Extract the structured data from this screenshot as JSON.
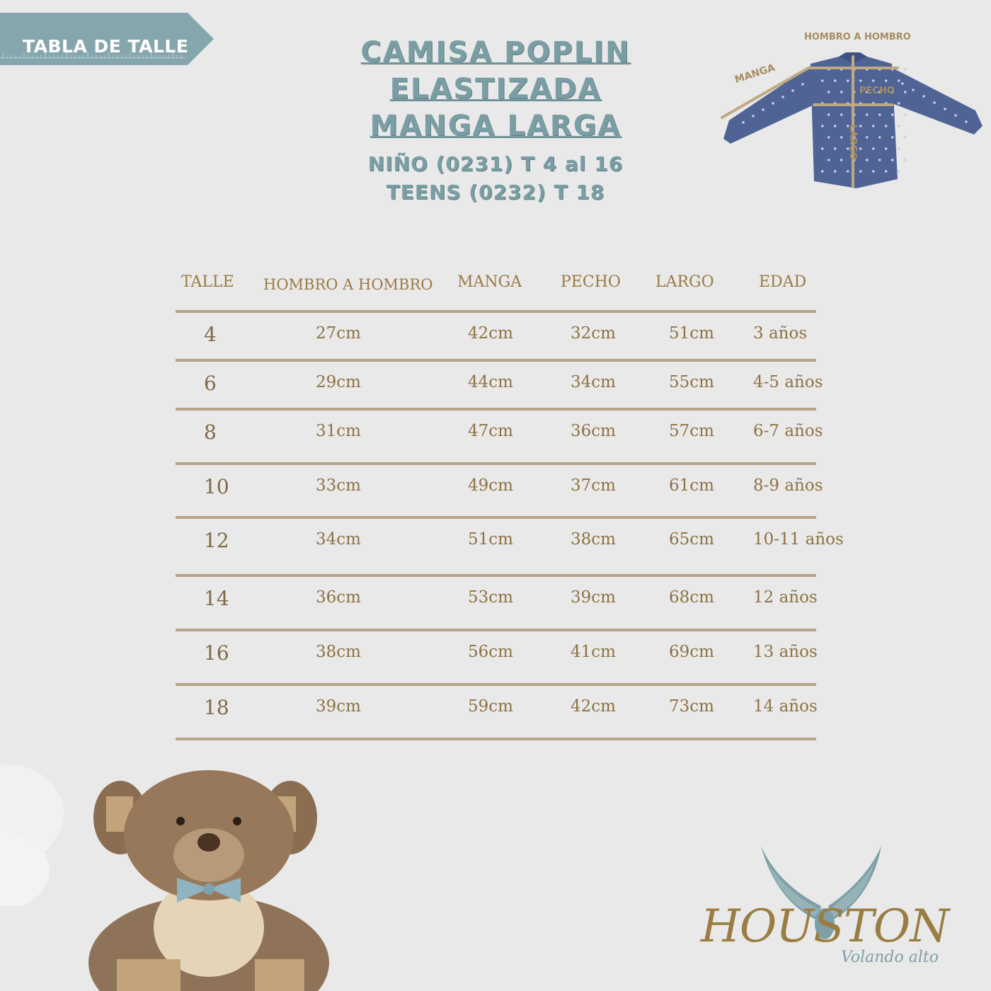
{
  "tag": {
    "label": "TABLA DE TALLE",
    "color": "#86a6ad"
  },
  "title": {
    "lines": [
      "CAMISA POPLIN",
      "ELASTIZADA",
      "MANGA LARGA"
    ],
    "sub_lines": [
      "NIÑO (0231) T 4 al 16",
      "TEENS (0232) T 18"
    ]
  },
  "diagram": {
    "hombro": "HOMBRO A HOMBRO",
    "manga": "MANGA",
    "pecho": "PECHO",
    "largo": "LARGO",
    "shirt_color": "#4f6495"
  },
  "table": {
    "headers": {
      "talle": "TALLE",
      "hombro": "HOMBRO A HOMBRO",
      "manga": "MANGA",
      "pecho": "PECHO",
      "largo": "LARGO",
      "edad": "EDAD"
    },
    "rows": [
      {
        "talle": "4",
        "hombro": "27cm",
        "manga": "42cm",
        "pecho": "32cm",
        "largo": "51cm",
        "edad": "3 años"
      },
      {
        "talle": "6",
        "hombro": "29cm",
        "manga": "44cm",
        "pecho": "34cm",
        "largo": "55cm",
        "edad": "4-5 años"
      },
      {
        "talle": "8",
        "hombro": "31cm",
        "manga": "47cm",
        "pecho": "36cm",
        "largo": "57cm",
        "edad": "6-7 años"
      },
      {
        "talle": "10",
        "hombro": "33cm",
        "manga": "49cm",
        "pecho": "37cm",
        "largo": "61cm",
        "edad": "8-9 años"
      },
      {
        "talle": "12",
        "hombro": "34cm",
        "manga": "51cm",
        "pecho": "38cm",
        "largo": "65cm",
        "edad": "10-11 años"
      },
      {
        "talle": "14",
        "hombro": "36cm",
        "manga": "53cm",
        "pecho": "39cm",
        "largo": "68cm",
        "edad": "12 años"
      },
      {
        "talle": "16",
        "hombro": "38cm",
        "manga": "56cm",
        "pecho": "41cm",
        "largo": "69cm",
        "edad": "13 años"
      },
      {
        "talle": "18",
        "hombro": "39cm",
        "manga": "59cm",
        "pecho": "42cm",
        "largo": "73cm",
        "edad": "14 años"
      }
    ]
  },
  "logo": {
    "brand": "HOUSTON",
    "tagline": "Volando alto",
    "gold": "#9a7d42",
    "blue": "#7e9fa6"
  },
  "illustration": {
    "bear_icon": "teddy-bear-icon",
    "bow_color": "#8fb3c0"
  }
}
